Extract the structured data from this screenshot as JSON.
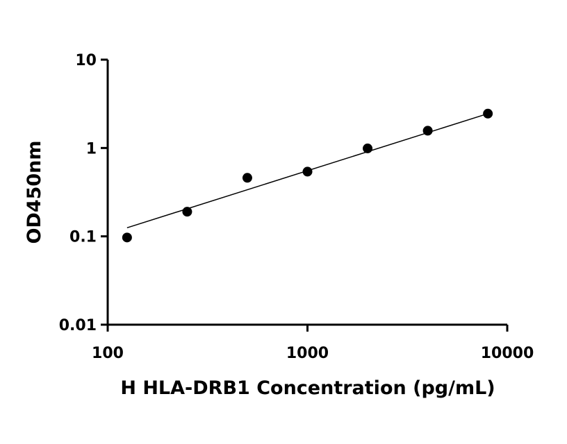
{
  "chart_data": {
    "type": "scatter",
    "title": "",
    "xlabel": "H HLA-DRB1 Concentration (pg/mL)",
    "ylabel": "OD450nm",
    "xscale": "log",
    "yscale": "log",
    "xlim": [
      100,
      10000
    ],
    "ylim": [
      0.01,
      10
    ],
    "xticks": [
      100,
      1000,
      10000
    ],
    "xtick_labels": [
      "100",
      "1000",
      "10000"
    ],
    "yticks": [
      0.01,
      0.1,
      1,
      10
    ],
    "ytick_labels": [
      "0.01",
      "0.1",
      "1",
      "10"
    ],
    "grid": false,
    "legend": "none",
    "series": [
      {
        "x": [
          125,
          250,
          500,
          1000,
          2000,
          4000,
          8000
        ],
        "y": [
          0.097,
          0.19,
          0.46,
          0.54,
          0.99,
          1.57,
          2.45
        ]
      }
    ],
    "fit_line": {
      "x": [
        125,
        8000
      ],
      "y": [
        0.125,
        2.45
      ]
    }
  }
}
